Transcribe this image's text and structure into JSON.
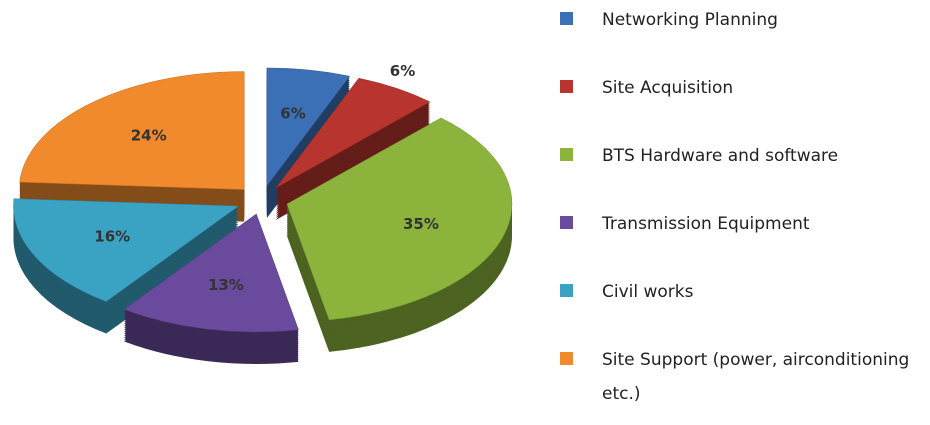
{
  "chart_data": {
    "type": "pie",
    "categories": [
      "Networking Planning",
      "Site Acquisition",
      "BTS Hardware and software",
      "Transmission Equipment",
      "Civil works",
      "Site Support (power, airconditioning etc.)"
    ],
    "values": [
      6,
      6,
      35,
      13,
      16,
      24
    ],
    "value_labels": [
      "6%",
      "6%",
      "35%",
      "13%",
      "16%",
      "24%"
    ],
    "colors": [
      "#3b6fb6",
      "#b8342e",
      "#8cb43c",
      "#6a4a9c",
      "#3aa3c4",
      "#f08a2c"
    ]
  }
}
